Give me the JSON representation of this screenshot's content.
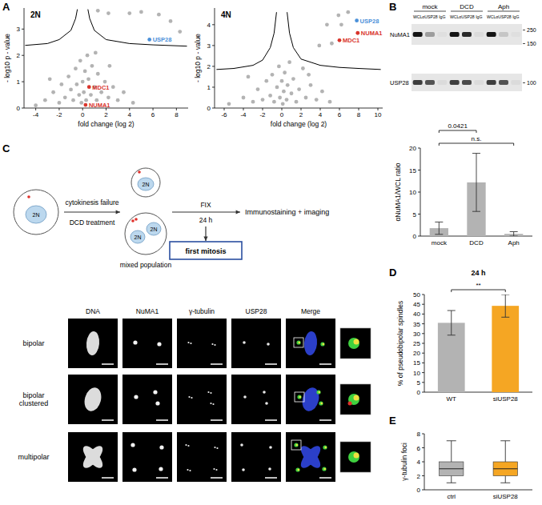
{
  "panel_labels": [
    "A",
    "B",
    "C",
    "D",
    "E"
  ],
  "chart_data": [
    {
      "type": "scatter",
      "title": "2N",
      "x_label": "fold change (log 2)",
      "y_label": "- log10 p - value",
      "xlim": [
        -5,
        9
      ],
      "ylim": [
        0,
        3.8
      ],
      "xticks": [
        -4,
        -2,
        0,
        2,
        4,
        6,
        8
      ],
      "yticks": [
        0,
        1,
        2,
        3
      ],
      "x": [
        -3.2,
        -2.5,
        -2,
        -1.8,
        -1.5,
        -1.2,
        -1,
        -0.8,
        -0.6,
        -0.5,
        -0.3,
        -0.2,
        -0.1,
        0,
        0.1,
        0.2,
        0.3,
        0.4,
        0.5,
        0.7,
        0.8,
        1,
        1.2,
        1.3,
        1.6,
        1.9,
        2.2,
        2.6,
        3,
        3.5,
        4.3,
        2.3,
        1.1,
        -2.8,
        -4,
        1.3,
        2.2,
        4,
        5,
        6.5,
        7.5,
        8.3,
        5.7,
        0.55,
        0.25
      ],
      "values": [
        0.3,
        0.6,
        0.2,
        0.9,
        0.4,
        1.2,
        0.7,
        0.3,
        1.5,
        0.9,
        0.5,
        1.8,
        0.2,
        1,
        0.6,
        1.4,
        0.3,
        2,
        1.1,
        0.5,
        1.6,
        0.8,
        0.3,
        1.3,
        0.6,
        1,
        0.4,
        0.8,
        0.3,
        0.6,
        0.2,
        1.6,
        2.1,
        1.1,
        0.1,
        3.7,
        3.6,
        3.6,
        3.65,
        3.55,
        3.3,
        2.9,
        2.6,
        0.8,
        0.12
      ],
      "colors": [
        "#b3b3b3",
        "#b3b3b3",
        "#b3b3b3",
        "#b3b3b3",
        "#b3b3b3",
        "#b3b3b3",
        "#b3b3b3",
        "#b3b3b3",
        "#b3b3b3",
        "#b3b3b3",
        "#b3b3b3",
        "#b3b3b3",
        "#b3b3b3",
        "#b3b3b3",
        "#b3b3b3",
        "#b3b3b3",
        "#b3b3b3",
        "#b3b3b3",
        "#b3b3b3",
        "#b3b3b3",
        "#b3b3b3",
        "#b3b3b3",
        "#b3b3b3",
        "#b3b3b3",
        "#b3b3b3",
        "#b3b3b3",
        "#b3b3b3",
        "#b3b3b3",
        "#b3b3b3",
        "#b3b3b3",
        "#b3b3b3",
        "#b3b3b3",
        "#b3b3b3",
        "#b3b3b3",
        "#b3b3b3",
        "#b3b3b3",
        "#b3b3b3",
        "#b3b3b3",
        "#b3b3b3",
        "#b3b3b3",
        "#b3b3b3",
        "#b3b3b3",
        "#4a90d9",
        "#d9342b",
        "#d9342b"
      ],
      "point_labels": [
        null,
        null,
        null,
        null,
        null,
        null,
        null,
        null,
        null,
        null,
        null,
        null,
        null,
        null,
        null,
        null,
        null,
        null,
        null,
        null,
        null,
        null,
        null,
        null,
        null,
        null,
        null,
        null,
        null,
        null,
        null,
        null,
        null,
        null,
        null,
        null,
        null,
        null,
        null,
        null,
        null,
        null,
        "USP28",
        "MDC1",
        "NUMA1"
      ],
      "threshold": [
        {
          "x": [
            -4.9,
            -3,
            -2,
            -1,
            -0.6,
            -0.45
          ],
          "values": [
            2.38,
            2.45,
            2.6,
            2.95,
            3.4,
            3.75
          ]
        },
        {
          "x": [
            0.45,
            0.6,
            1,
            2,
            4,
            6,
            8.9
          ],
          "values": [
            3.75,
            3.4,
            2.95,
            2.6,
            2.45,
            2.4,
            2.35
          ]
        }
      ]
    },
    {
      "type": "scatter",
      "title": "4N",
      "x_label": "fold change (log 2)",
      "y_label": "- log10 p - value",
      "xlim": [
        -7,
        10.5
      ],
      "ylim": [
        0,
        4.8
      ],
      "xticks": [
        -6,
        -4,
        -2,
        0,
        2,
        4,
        6,
        8,
        10
      ],
      "yticks": [
        0,
        1,
        2,
        3,
        4
      ],
      "x": [
        -5.5,
        -4,
        -3,
        -2.5,
        -2,
        -1.6,
        -1.2,
        -1,
        -0.8,
        -0.5,
        -0.3,
        -0.2,
        0,
        0.1,
        0.2,
        0.3,
        0.5,
        0.6,
        0.8,
        1,
        1.2,
        1.5,
        1.8,
        2.2,
        2.5,
        3,
        3.6,
        4.2,
        5,
        -3.5,
        2.8,
        4.7,
        5.9,
        6.2,
        6.9,
        5.2,
        3.9,
        7.8,
        7.9,
        6
      ],
      "values": [
        0.2,
        0.5,
        0.3,
        0.9,
        0.4,
        1.3,
        0.6,
        1.6,
        0.3,
        1,
        2,
        0.5,
        1.3,
        0.2,
        0.8,
        1.7,
        0.4,
        1.1,
        2.2,
        0.7,
        1.4,
        0.3,
        0.9,
        1.9,
        0.5,
        1.1,
        0.4,
        0.8,
        0.3,
        1.5,
        1.6,
        4,
        4.45,
        4,
        4.6,
        3.1,
        3,
        4.2,
        3.6,
        3.25
      ],
      "colors": [
        "#b3b3b3",
        "#b3b3b3",
        "#b3b3b3",
        "#b3b3b3",
        "#b3b3b3",
        "#b3b3b3",
        "#b3b3b3",
        "#b3b3b3",
        "#b3b3b3",
        "#b3b3b3",
        "#b3b3b3",
        "#b3b3b3",
        "#b3b3b3",
        "#b3b3b3",
        "#b3b3b3",
        "#b3b3b3",
        "#b3b3b3",
        "#b3b3b3",
        "#b3b3b3",
        "#b3b3b3",
        "#b3b3b3",
        "#b3b3b3",
        "#b3b3b3",
        "#b3b3b3",
        "#b3b3b3",
        "#b3b3b3",
        "#b3b3b3",
        "#b3b3b3",
        "#b3b3b3",
        "#b3b3b3",
        "#b3b3b3",
        "#b3b3b3",
        "#b3b3b3",
        "#b3b3b3",
        "#b3b3b3",
        "#b3b3b3",
        "#b3b3b3",
        "#4a90d9",
        "#d9342b",
        "#d9342b"
      ],
      "point_labels": [
        null,
        null,
        null,
        null,
        null,
        null,
        null,
        null,
        null,
        null,
        null,
        null,
        null,
        null,
        null,
        null,
        null,
        null,
        null,
        null,
        null,
        null,
        null,
        null,
        null,
        null,
        null,
        null,
        null,
        null,
        null,
        null,
        null,
        null,
        null,
        null,
        null,
        "USP28",
        "NUMA1",
        "MDC1"
      ],
      "threshold": [
        {
          "x": [
            -6.8,
            -5,
            -3,
            -2,
            -1.2,
            -0.8,
            -0.55
          ],
          "values": [
            1.85,
            1.9,
            2.05,
            2.3,
            2.9,
            3.6,
            4.6
          ]
        },
        {
          "x": [
            0.55,
            0.8,
            1.2,
            2,
            4,
            6,
            8,
            10.3
          ],
          "values": [
            4.6,
            3.6,
            2.9,
            2.35,
            2.05,
            1.95,
            1.9,
            1.85
          ]
        }
      ]
    },
    {
      "type": "bar",
      "y_label": "αNuMA1/WCL ratio",
      "categories": [
        "mock",
        "DCD",
        "Aph"
      ],
      "values": [
        1.8,
        12.2,
        0.5
      ],
      "errors": [
        1.4,
        6.6,
        0.5
      ],
      "color": "#b3b3b3",
      "ylim": [
        0,
        20
      ],
      "yticks": [
        0,
        5,
        10,
        15,
        20
      ],
      "annotations": [
        {
          "text": "0.0421",
          "from": "mock",
          "to": "DCD"
        },
        {
          "text": "n.s.",
          "from": "mock",
          "to": "Aph"
        }
      ]
    },
    {
      "type": "bar",
      "title": "24 h",
      "y_label": "% of pseudobipolar spindles",
      "categories": [
        "WT",
        "siUSP28"
      ],
      "values": [
        35.5,
        44.2
      ],
      "errors": [
        6.3,
        5.8
      ],
      "colors": [
        "#b3b3b3",
        "#f5a623"
      ],
      "ylim": [
        0,
        50
      ],
      "yticks": [
        0,
        5,
        10,
        15,
        20,
        25,
        30,
        35,
        40,
        45,
        50
      ],
      "annotations": [
        {
          "text": "**",
          "from": "WT",
          "to": "siUSP28"
        }
      ]
    },
    {
      "type": "box",
      "y_label": "γ-tubulin foci",
      "categories": [
        "ctrl",
        "siUSP28"
      ],
      "min": [
        1,
        1
      ],
      "q1": [
        2,
        2
      ],
      "median": [
        3,
        3
      ],
      "q3": [
        4,
        4
      ],
      "max": [
        7,
        7
      ],
      "colors": [
        "#b3b3b3",
        "#f5a623"
      ],
      "ylim": [
        0,
        8
      ],
      "yticks": [
        0,
        2,
        4,
        6,
        8
      ]
    }
  ],
  "blot": {
    "conditions": [
      "mock",
      "DCD",
      "Aph"
    ],
    "lanes": [
      "WCL",
      "αUSP28",
      "IgG"
    ],
    "proteins": [
      "NuMA1",
      "USP28"
    ],
    "mw_markers": [
      250,
      150,
      100
    ]
  },
  "schematic": {
    "cell": "2N",
    "step1_top": "cytokinesis failure",
    "step1_bottom": "DCD treatment",
    "population": "mixed population",
    "step2_top": "FIX",
    "step2_bottom": "24 h",
    "readout": "Immunostaining + imaging",
    "box": "first mitosis"
  },
  "images": {
    "columns": [
      "DNA",
      "NuMA1",
      "γ-tubulin",
      "USP28",
      "Merge"
    ],
    "rows": [
      [
        "bipolar"
      ],
      [
        "bipolar",
        "clustered"
      ],
      [
        "multipolar"
      ]
    ]
  }
}
